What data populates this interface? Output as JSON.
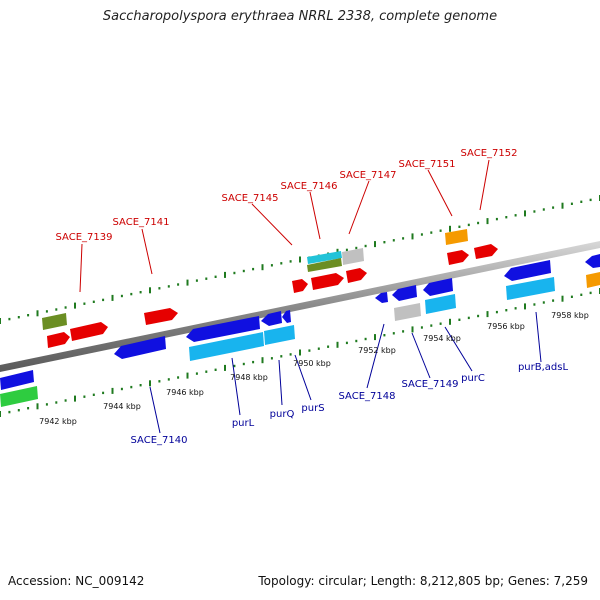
{
  "title": "Saccharopolyspora erythraea NRRL 2338, complete genome",
  "footer": {
    "accession": "Accession: NC_009142",
    "summary": "Topology: circular; Length: 8,212,805 bp; Genes: 7,259"
  },
  "colors": {
    "backbone": "#8a8a8a",
    "tick": "#1f7a1f",
    "label_top": "#cc0000",
    "label_bottom": "#000099",
    "red": "#e60000",
    "olive": "#6b8e23",
    "teal": "#22c3d8",
    "gray": "#c0c0c0",
    "orange": "#f59a00",
    "blue": "#1010e0",
    "lightblue": "#18b4ee",
    "green": "#2ecc40"
  },
  "scale_labels": [
    "7942 kbp",
    "7944 kbp",
    "7946 kbp",
    "7948 kbp",
    "7950 kbp",
    "7952 kbp",
    "7954 kbp",
    "7956 kbp",
    "7958 kbp"
  ],
  "top_labels": [
    "SACE_7139",
    "SACE_7141",
    "SACE_7145",
    "SACE_7146",
    "SACE_7147",
    "SACE_7151",
    "SACE_7152"
  ],
  "bottom_labels": [
    "SACE_7140",
    "purL",
    "purQ",
    "purS",
    "SACE_7148",
    "SACE_7149",
    "purC",
    "purB,adsL"
  ]
}
